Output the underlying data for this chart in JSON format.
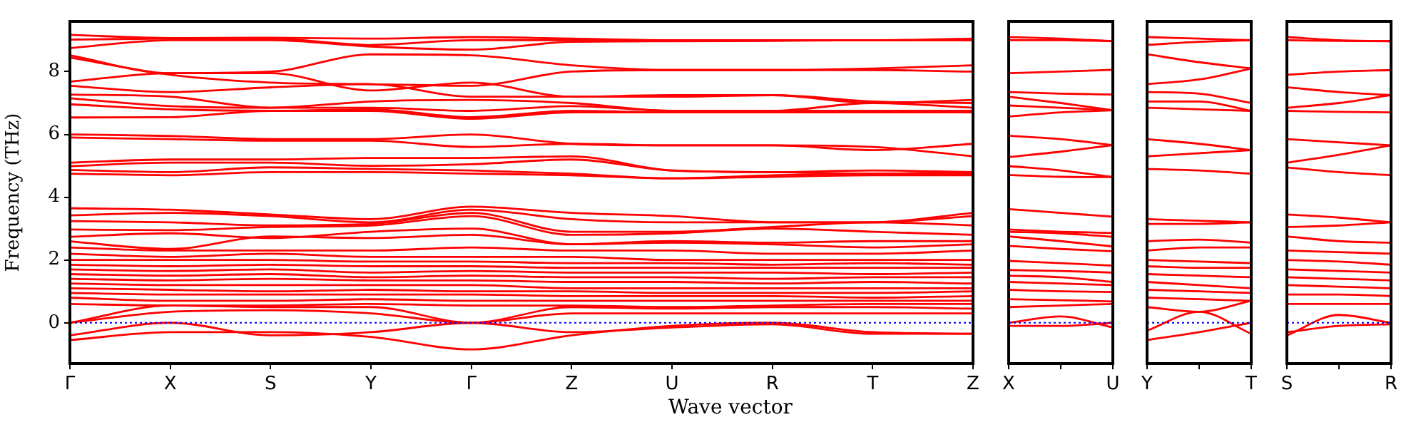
{
  "chart_data": [
    {
      "type": "line",
      "ylabel": "Frequency (THz)",
      "xlabel": "Wave vector",
      "color": "#ff0000",
      "grid": false,
      "legend": false,
      "marker": "none",
      "line_style": "solid",
      "categories": [
        "Γ",
        "X",
        "S",
        "Y",
        "Γ",
        "Z",
        "U",
        "R",
        "T",
        "Z"
      ],
      "ylim": [
        -1.3,
        9.6
      ],
      "yticks": [
        0,
        2,
        4,
        6,
        8
      ],
      "ref_lines": [
        {
          "axis": "y",
          "value": 0,
          "color": "#0000ff",
          "line_style": "dotted"
        }
      ],
      "series": [
        {
          "values": [
            9.17,
            9.07,
            9.08,
            9.05,
            9.1,
            9.05,
            9.0,
            9.0,
            9.0,
            9.05
          ]
        },
        {
          "values": [
            9.02,
            9.05,
            9.05,
            8.85,
            9.0,
            9.0,
            9.0,
            9.0,
            9.0,
            9.0
          ]
        },
        {
          "values": [
            8.75,
            9.0,
            9.0,
            8.8,
            8.7,
            8.95,
            8.97,
            8.98,
            9.0,
            9.0
          ]
        },
        {
          "values": [
            8.52,
            7.95,
            8.0,
            8.55,
            8.52,
            8.2,
            8.05,
            8.05,
            8.1,
            8.2
          ]
        },
        {
          "values": [
            8.45,
            7.9,
            7.65,
            7.6,
            7.55,
            8.0,
            8.05,
            8.05,
            8.05,
            8.0
          ]
        },
        {
          "values": [
            7.68,
            7.95,
            7.95,
            7.4,
            7.65,
            7.2,
            7.2,
            7.25,
            7.0,
            7.1
          ]
        },
        {
          "values": [
            7.55,
            7.35,
            7.5,
            7.6,
            7.2,
            7.2,
            7.25,
            7.25,
            7.05,
            7.0
          ]
        },
        {
          "values": [
            7.27,
            7.2,
            6.85,
            7.05,
            7.1,
            7.0,
            6.75,
            6.75,
            7.0,
            6.85
          ]
        },
        {
          "values": [
            7.15,
            6.9,
            6.85,
            6.85,
            6.75,
            6.9,
            6.75,
            6.75,
            6.75,
            6.75
          ]
        },
        {
          "values": [
            6.96,
            6.8,
            6.75,
            6.8,
            6.55,
            6.75,
            6.7,
            6.7,
            6.75,
            6.7
          ]
        },
        {
          "values": [
            6.54,
            6.55,
            6.75,
            6.75,
            6.5,
            6.7,
            6.7,
            6.7,
            6.7,
            6.7
          ]
        },
        {
          "values": [
            6.0,
            5.95,
            5.85,
            5.85,
            6.0,
            5.7,
            5.65,
            5.65,
            5.5,
            5.7
          ]
        },
        {
          "values": [
            5.9,
            5.85,
            5.8,
            5.8,
            5.6,
            5.7,
            5.65,
            5.65,
            5.6,
            5.3
          ]
        },
        {
          "values": [
            5.1,
            5.2,
            5.2,
            5.25,
            5.25,
            5.3,
            4.85,
            4.8,
            4.85,
            4.8
          ]
        },
        {
          "values": [
            4.99,
            5.1,
            5.1,
            5.0,
            5.05,
            5.2,
            4.85,
            4.8,
            4.75,
            4.8
          ]
        },
        {
          "values": [
            4.87,
            4.8,
            4.95,
            4.9,
            4.85,
            4.75,
            4.6,
            4.7,
            4.75,
            4.75
          ]
        },
        {
          "values": [
            4.75,
            4.7,
            4.8,
            4.8,
            4.75,
            4.7,
            4.6,
            4.65,
            4.7,
            4.7
          ]
        },
        {
          "values": [
            3.65,
            3.6,
            3.45,
            3.3,
            3.7,
            3.5,
            3.4,
            3.2,
            3.2,
            3.5
          ]
        },
        {
          "values": [
            3.42,
            3.5,
            3.4,
            3.2,
            3.6,
            3.3,
            3.2,
            3.2,
            3.2,
            3.4
          ]
        },
        {
          "values": [
            3.24,
            3.2,
            3.1,
            3.15,
            3.5,
            2.9,
            2.9,
            3.05,
            3.2,
            3.1
          ]
        },
        {
          "values": [
            2.97,
            2.95,
            3.05,
            3.1,
            3.4,
            2.8,
            2.85,
            3.0,
            2.9,
            2.8
          ]
        },
        {
          "values": [
            2.74,
            2.85,
            2.7,
            2.9,
            3.0,
            2.5,
            2.6,
            2.55,
            2.6,
            2.6
          ]
        },
        {
          "values": [
            2.59,
            2.35,
            2.75,
            2.7,
            2.8,
            2.5,
            2.55,
            2.5,
            2.4,
            2.5
          ]
        },
        {
          "values": [
            2.4,
            2.3,
            2.3,
            2.3,
            2.4,
            2.3,
            2.3,
            2.2,
            2.2,
            2.3
          ]
        },
        {
          "values": [
            2.2,
            2.1,
            2.2,
            2.1,
            2.1,
            2.1,
            2.0,
            2.0,
            2.0,
            2.0
          ]
        },
        {
          "values": [
            2.0,
            2.0,
            2.0,
            1.95,
            1.95,
            1.9,
            1.9,
            1.85,
            1.9,
            1.85
          ]
        },
        {
          "values": [
            1.85,
            1.8,
            1.85,
            1.8,
            1.8,
            1.75,
            1.75,
            1.75,
            1.75,
            1.75
          ]
        },
        {
          "values": [
            1.7,
            1.65,
            1.7,
            1.6,
            1.65,
            1.6,
            1.6,
            1.6,
            1.55,
            1.6
          ]
        },
        {
          "values": [
            1.55,
            1.5,
            1.55,
            1.45,
            1.5,
            1.45,
            1.45,
            1.4,
            1.45,
            1.45
          ]
        },
        {
          "values": [
            1.4,
            1.35,
            1.4,
            1.35,
            1.35,
            1.3,
            1.3,
            1.25,
            1.3,
            1.25
          ]
        },
        {
          "values": [
            1.25,
            1.2,
            1.2,
            1.2,
            1.2,
            1.1,
            1.1,
            1.1,
            1.1,
            1.1
          ]
        },
        {
          "values": [
            1.1,
            1.05,
            1.0,
            1.05,
            1.0,
            1.0,
            0.95,
            0.95,
            0.95,
            1.0
          ]
        },
        {
          "values": [
            0.95,
            0.9,
            0.9,
            0.9,
            0.9,
            0.85,
            0.85,
            0.85,
            0.8,
            0.85
          ]
        },
        {
          "values": [
            0.8,
            0.7,
            0.7,
            0.75,
            0.7,
            0.7,
            0.7,
            0.7,
            0.7,
            0.7
          ]
        },
        {
          "values": [
            0.6,
            0.55,
            0.55,
            0.6,
            0.55,
            0.55,
            0.5,
            0.55,
            0.6,
            0.6
          ]
        },
        {
          "values": [
            0,
            0.55,
            0.5,
            0.5,
            0,
            0.5,
            0.45,
            0.5,
            0.5,
            0.45
          ]
        },
        {
          "values": [
            0,
            0.35,
            0.4,
            0.3,
            0,
            0.3,
            0.3,
            0.3,
            0.3,
            0.3
          ]
        },
        {
          "values": [
            -0.4,
            0,
            -0.4,
            -0.3,
            0,
            -0.3,
            -0.15,
            -0.05,
            -0.35,
            -0.35
          ]
        },
        {
          "values": [
            -0.55,
            -0.3,
            -0.3,
            -0.45,
            -0.85,
            -0.4,
            -0.1,
            0,
            -0.3,
            -0.35
          ]
        }
      ]
    },
    {
      "type": "line",
      "color": "#ff0000",
      "grid": false,
      "legend": false,
      "marker": "none",
      "line_style": "solid",
      "tick_labels": "x",
      "categories": [
        "X",
        null,
        "U"
      ],
      "ylim": [
        -1.3,
        9.6
      ],
      "ref_lines": [
        {
          "axis": "y",
          "value": 0,
          "color": "#0000ff",
          "line_style": "dotted"
        }
      ],
      "series": [
        {
          "values": [
            9.1,
            9.05,
            8.97
          ]
        },
        {
          "values": [
            9.0,
            9.0,
            8.97
          ]
        },
        {
          "values": [
            7.95,
            8.0,
            8.06
          ]
        },
        {
          "values": [
            7.35,
            7.3,
            7.27
          ]
        },
        {
          "values": [
            7.2,
            7.0,
            6.77
          ]
        },
        {
          "values": [
            6.92,
            6.85,
            6.77
          ]
        },
        {
          "values": [
            6.57,
            6.7,
            6.77
          ]
        },
        {
          "values": [
            5.96,
            5.85,
            5.66
          ]
        },
        {
          "values": [
            5.28,
            5.45,
            5.66
          ]
        },
        {
          "values": [
            4.99,
            4.85,
            4.64
          ]
        },
        {
          "values": [
            4.71,
            4.65,
            4.64
          ]
        },
        {
          "values": [
            3.62,
            3.5,
            3.38
          ]
        },
        {
          "values": [
            2.97,
            2.9,
            2.86
          ]
        },
        {
          "values": [
            2.9,
            2.85,
            2.74
          ]
        },
        {
          "values": [
            2.75,
            2.6,
            2.43
          ]
        },
        {
          "values": [
            2.45,
            2.35,
            2.28
          ]
        },
        {
          "values": [
            1.97,
            1.9,
            1.82
          ]
        },
        {
          "values": [
            1.68,
            1.65,
            1.6
          ]
        },
        {
          "values": [
            1.5,
            1.45,
            1.3
          ]
        },
        {
          "values": [
            1.3,
            1.25,
            1.2
          ]
        },
        {
          "values": [
            1.05,
            1.0,
            0.98
          ]
        },
        {
          "values": [
            0.75,
            0.72,
            0.68
          ]
        },
        {
          "values": [
            0.5,
            0.55,
            0.6
          ]
        },
        {
          "values": [
            0,
            0.2,
            -0.15
          ]
        },
        {
          "values": [
            -0.1,
            -0.1,
            0
          ]
        }
      ]
    },
    {
      "type": "line",
      "color": "#ff0000",
      "grid": false,
      "legend": false,
      "marker": "none",
      "line_style": "solid",
      "tick_labels": "x",
      "categories": [
        "Y",
        null,
        "T"
      ],
      "ylim": [
        -1.3,
        9.6
      ],
      "ref_lines": [
        {
          "axis": "y",
          "value": 0,
          "color": "#0000ff",
          "line_style": "dotted"
        }
      ],
      "series": [
        {
          "values": [
            9.1,
            9.05,
            9.0
          ]
        },
        {
          "values": [
            8.85,
            8.95,
            9.0
          ]
        },
        {
          "values": [
            8.55,
            8.3,
            8.1
          ]
        },
        {
          "values": [
            7.6,
            7.75,
            8.1
          ]
        },
        {
          "values": [
            7.35,
            7.3,
            7.0
          ]
        },
        {
          "values": [
            7.05,
            7.05,
            6.75
          ]
        },
        {
          "values": [
            6.85,
            6.8,
            6.75
          ]
        },
        {
          "values": [
            5.85,
            5.7,
            5.5
          ]
        },
        {
          "values": [
            5.3,
            5.4,
            5.5
          ]
        },
        {
          "values": [
            4.9,
            4.85,
            4.75
          ]
        },
        {
          "values": [
            3.3,
            3.25,
            3.2
          ]
        },
        {
          "values": [
            3.15,
            3.15,
            3.2
          ]
        },
        {
          "values": [
            2.6,
            2.65,
            2.55
          ]
        },
        {
          "values": [
            2.3,
            2.4,
            2.4
          ]
        },
        {
          "values": [
            2.0,
            1.95,
            1.9
          ]
        },
        {
          "values": [
            1.8,
            1.75,
            1.75
          ]
        },
        {
          "values": [
            1.55,
            1.5,
            1.45
          ]
        },
        {
          "values": [
            1.3,
            1.2,
            1.1
          ]
        },
        {
          "values": [
            1.05,
            1.0,
            0.95
          ]
        },
        {
          "values": [
            0.8,
            0.75,
            0.7
          ]
        },
        {
          "values": [
            0.5,
            0.35,
            0.7
          ]
        },
        {
          "values": [
            -0.25,
            0.35,
            -0.35
          ]
        },
        {
          "values": [
            -0.55,
            -0.3,
            0
          ]
        }
      ]
    },
    {
      "type": "line",
      "color": "#ff0000",
      "grid": false,
      "legend": false,
      "marker": "none",
      "line_style": "solid",
      "tick_labels": "x",
      "categories": [
        "S",
        null,
        "R"
      ],
      "ylim": [
        -1.3,
        9.6
      ],
      "ref_lines": [
        {
          "axis": "y",
          "value": 0,
          "color": "#0000ff",
          "line_style": "dotted"
        }
      ],
      "series": [
        {
          "values": [
            9.1,
            9.0,
            8.97
          ]
        },
        {
          "values": [
            9.0,
            8.98,
            8.97
          ]
        },
        {
          "values": [
            7.9,
            8.0,
            8.05
          ]
        },
        {
          "values": [
            7.5,
            7.35,
            7.25
          ]
        },
        {
          "values": [
            6.85,
            7.0,
            7.25
          ]
        },
        {
          "values": [
            6.75,
            6.72,
            6.7
          ]
        },
        {
          "values": [
            5.85,
            5.75,
            5.65
          ]
        },
        {
          "values": [
            5.1,
            5.35,
            5.65
          ]
        },
        {
          "values": [
            4.95,
            4.8,
            4.7
          ]
        },
        {
          "values": [
            3.45,
            3.35,
            3.2
          ]
        },
        {
          "values": [
            3.05,
            3.1,
            3.2
          ]
        },
        {
          "values": [
            2.75,
            2.6,
            2.55
          ]
        },
        {
          "values": [
            2.3,
            2.25,
            2.2
          ]
        },
        {
          "values": [
            2.0,
            1.95,
            1.85
          ]
        },
        {
          "values": [
            1.7,
            1.65,
            1.6
          ]
        },
        {
          "values": [
            1.45,
            1.4,
            1.35
          ]
        },
        {
          "values": [
            1.2,
            1.15,
            1.1
          ]
        },
        {
          "values": [
            0.9,
            0.9,
            0.85
          ]
        },
        {
          "values": [
            0.6,
            0.6,
            0.6
          ]
        },
        {
          "values": [
            -0.4,
            0.25,
            0
          ]
        },
        {
          "values": [
            -0.3,
            -0.1,
            -0.05
          ]
        }
      ]
    }
  ]
}
